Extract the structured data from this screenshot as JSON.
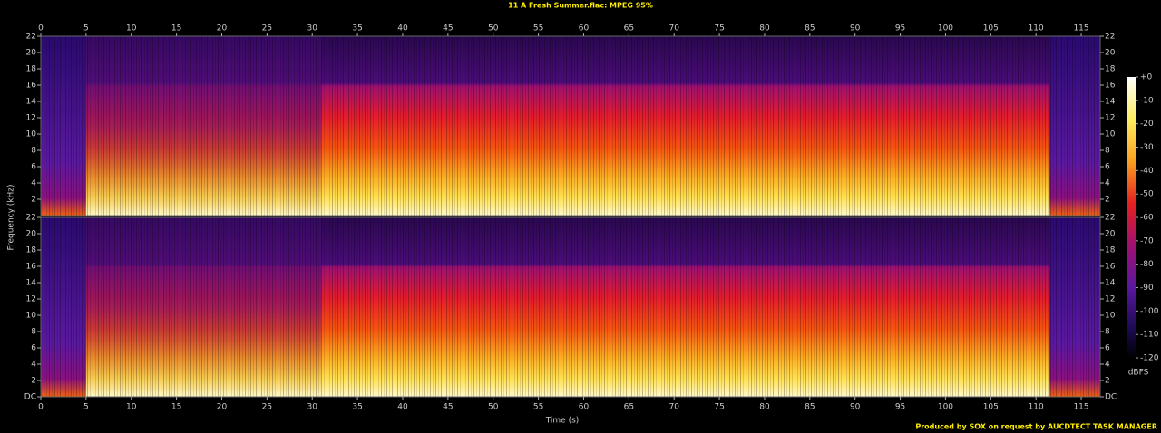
{
  "chart_data": {
    "type": "spectrogram",
    "title": "11 A Fresh Summer.flac: MPEG 95%",
    "xlabel": "Time (s)",
    "ylabel": "Frequency (kHz)",
    "xlim": [
      0,
      117.1
    ],
    "xticks": [
      0,
      5,
      10,
      15,
      20,
      25,
      30,
      35,
      40,
      45,
      50,
      55,
      60,
      65,
      70,
      75,
      80,
      85,
      90,
      95,
      100,
      105,
      110,
      115
    ],
    "channels": [
      {
        "ylim": [
          0,
          22
        ],
        "yticks": [
          2,
          4,
          6,
          8,
          10,
          12,
          14,
          16,
          18,
          20,
          22
        ]
      },
      {
        "ylim": [
          0,
          22
        ],
        "yticks": [
          {
            "value": 0,
            "label": "DC"
          },
          2,
          4,
          6,
          8,
          10,
          12,
          14,
          16,
          18,
          20,
          22
        ]
      }
    ],
    "colorbar": {
      "label": "dBFS",
      "lim": [
        -120,
        0
      ],
      "ticks": [
        {
          "value": 0,
          "label": "+0"
        },
        -10,
        -20,
        -30,
        -40,
        -50,
        -60,
        -70,
        -80,
        -90,
        -100,
        -110,
        -120
      ]
    },
    "footer": "Produced by SOX on request by AUCDTECT TASK MANAGER"
  }
}
